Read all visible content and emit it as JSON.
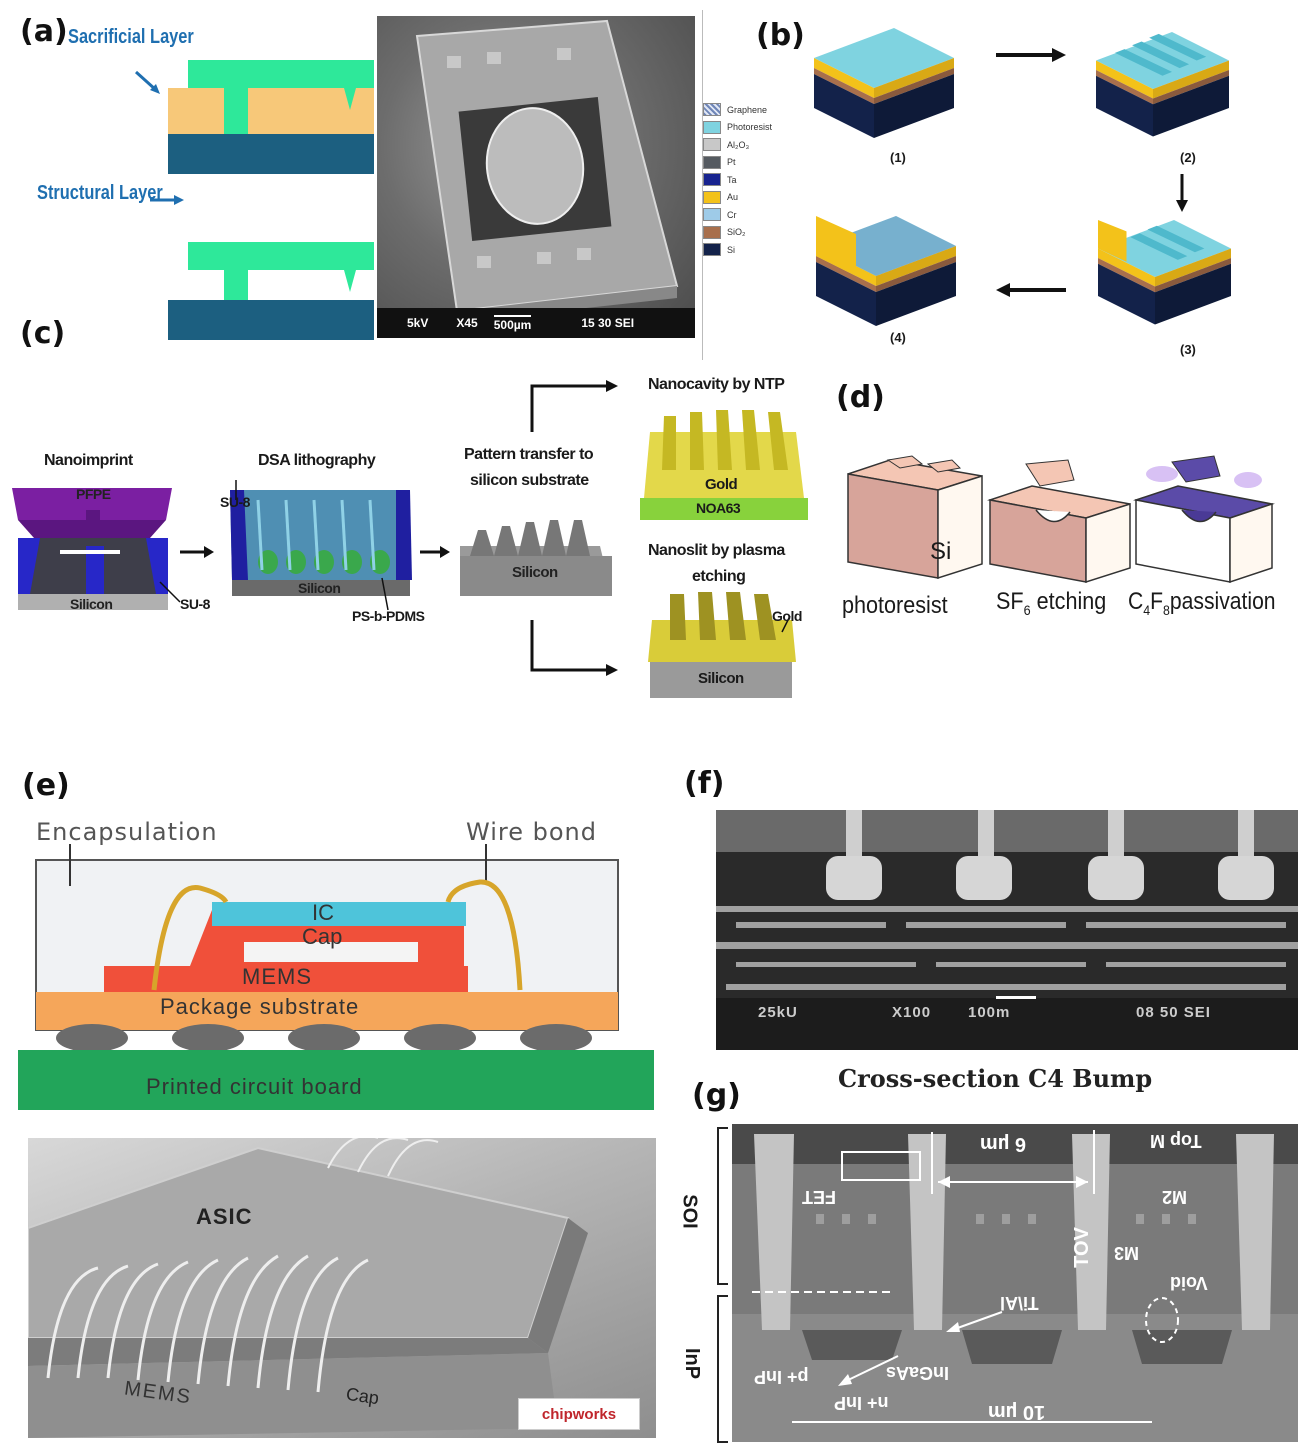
{
  "panels": {
    "a": {
      "label": "(a)",
      "sacrificial_layer": "Sacrificial Layer",
      "structural_layer": "Structural Layer",
      "sem_bar": {
        "kv": "5kV",
        "mag": "X45",
        "scale": "500µm",
        "info": "15 30 SEI"
      },
      "colors": {
        "green": "#2ee89a",
        "orange": "#f7c879",
        "navy": "#1c5f80"
      }
    },
    "b": {
      "label": "(b)",
      "steps": [
        "(1)",
        "(2)",
        "(3)",
        "(4)"
      ],
      "legend": [
        {
          "name": "Graphene",
          "color": "#6f86b8"
        },
        {
          "name": "Photoresist",
          "color": "#7fd3e0"
        },
        {
          "name": "Al₂O₃",
          "color": "#c8c8c8"
        },
        {
          "name": "Pt",
          "color": "#555a60"
        },
        {
          "name": "Ta",
          "color": "#17238f"
        },
        {
          "name": "Au",
          "color": "#f3c21a"
        },
        {
          "name": "Cr",
          "color": "#9ecbe8"
        },
        {
          "name": "SiO₂",
          "color": "#a86f4c"
        },
        {
          "name": "Si",
          "color": "#13224a"
        }
      ]
    },
    "c": {
      "label": "(c)",
      "nanoimprint": "Nanoimprint",
      "pfpe": "PFPE",
      "silicon": "Silicon",
      "su8": "SU-8",
      "dsa": "DSA lithography",
      "psbpdms": "PS-b-PDMS",
      "pattern_transfer_1": "Pattern transfer to",
      "pattern_transfer_2": "silicon substrate",
      "nanocavity": "Nanocavity by NTP",
      "gold": "Gold",
      "noa63": "NOA63",
      "nanoslit_1": "Nanoslit by plasma",
      "nanoslit_2": "etching"
    },
    "d": {
      "label": "(d)",
      "si": "Si",
      "photoresist": "photoresist",
      "sf6": "SF",
      "sf6_sub": "6",
      "sf6_rest": "etching",
      "c4f8_c": "C",
      "c4f8_sub1": "4",
      "c4f8_f": "F",
      "c4f8_sub2": "8",
      "c4f8_rest": "passivation"
    },
    "e": {
      "label": "(e)",
      "encapsulation": "Encapsulation",
      "wire_bond": "Wire bond",
      "ic": "IC",
      "cap": "Cap",
      "mems": "MEMS",
      "package_substrate": "Package substrate",
      "pcb": "Printed circuit board",
      "asic": "ASIC",
      "mems_photo": "MEMS",
      "cap_photo": "Cap",
      "chipworks": "chipworks"
    },
    "f": {
      "label": "(f)",
      "sem_bar": {
        "kv": "25kU",
        "mag": "X100",
        "scale": "100m",
        "info": "08 50 SEI"
      }
    },
    "g": {
      "label": "(g)",
      "title": "Cross-section C4 Bump",
      "soi": "SOI",
      "inp": "InP",
      "top_m": "Top M",
      "m2": "M2",
      "m3": "M3",
      "fet": "FET",
      "tov": "TOV",
      "six_um": "6 µm",
      "ten_um": "10 µm",
      "void": "Void",
      "tial": "Ti\\Al",
      "ingaas": "InGaAs",
      "p_inp": "p+ InP",
      "n_inp": "n+ InP"
    }
  }
}
